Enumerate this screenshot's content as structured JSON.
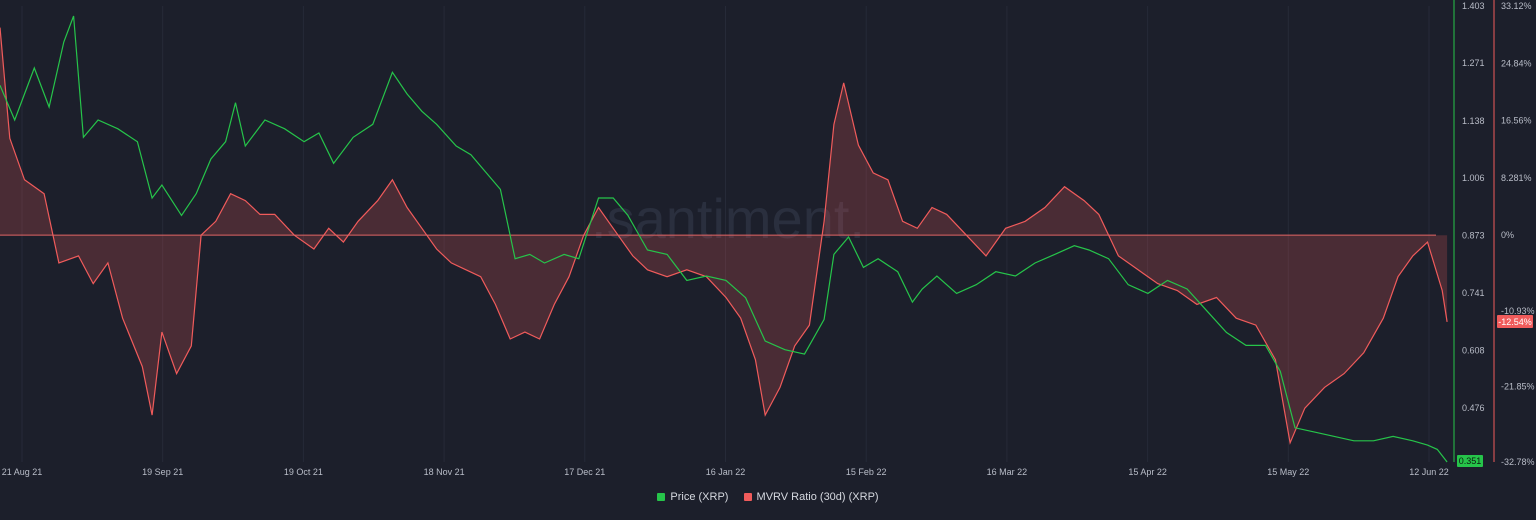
{
  "colors": {
    "background": "#1c1f2b",
    "price": "#26c44a",
    "mvrv": "#f05b5b",
    "grid": "#262a38",
    "zero_line": "#e26565"
  },
  "chart_data": {
    "type": "line",
    "watermark": ".santiment.",
    "x_ticks": [
      "21 Aug 21",
      "19 Sep 21",
      "19 Oct 21",
      "18 Nov 21",
      "17 Dec 21",
      "16 Jan 22",
      "15 Feb 22",
      "16 Mar 22",
      "15 Apr 22",
      "15 May 22",
      "12 Jun 22"
    ],
    "x_range": [
      "2021-08-21",
      "2022-06-13"
    ],
    "price_axis": {
      "ticks": [
        "1.403",
        "1.271",
        "1.138",
        "1.006",
        "0.873",
        "0.741",
        "0.608",
        "0.476"
      ],
      "range": [
        0.351,
        1.403
      ],
      "current_label": "0.351"
    },
    "mvrv_axis": {
      "ticks": [
        "33.12%",
        "24.84%",
        "16.56%",
        "8.281%",
        "0%",
        "-10.93%",
        "-21.85%",
        "-32.78%"
      ],
      "range": [
        -32.78,
        33.12
      ],
      "current_label": "-12.54%"
    },
    "series": [
      {
        "name": "Price (XRP)",
        "axis": "left",
        "color": "#26c44a",
        "points": [
          [
            "2021-08-21",
            1.22
          ],
          [
            "2021-08-24",
            1.14
          ],
          [
            "2021-08-28",
            1.26
          ],
          [
            "2021-08-31",
            1.17
          ],
          [
            "2021-09-03",
            1.32
          ],
          [
            "2021-09-05",
            1.38
          ],
          [
            "2021-09-07",
            1.1
          ],
          [
            "2021-09-10",
            1.14
          ],
          [
            "2021-09-14",
            1.12
          ],
          [
            "2021-09-18",
            1.09
          ],
          [
            "2021-09-21",
            0.96
          ],
          [
            "2021-09-23",
            0.99
          ],
          [
            "2021-09-27",
            0.92
          ],
          [
            "2021-09-30",
            0.97
          ],
          [
            "2021-10-03",
            1.05
          ],
          [
            "2021-10-06",
            1.09
          ],
          [
            "2021-10-08",
            1.18
          ],
          [
            "2021-10-10",
            1.08
          ],
          [
            "2021-10-14",
            1.14
          ],
          [
            "2021-10-18",
            1.12
          ],
          [
            "2021-10-22",
            1.09
          ],
          [
            "2021-10-25",
            1.11
          ],
          [
            "2021-10-28",
            1.04
          ],
          [
            "2021-11-01",
            1.1
          ],
          [
            "2021-11-05",
            1.13
          ],
          [
            "2021-11-09",
            1.25
          ],
          [
            "2021-11-12",
            1.2
          ],
          [
            "2021-11-15",
            1.16
          ],
          [
            "2021-11-18",
            1.13
          ],
          [
            "2021-11-22",
            1.08
          ],
          [
            "2021-11-25",
            1.06
          ],
          [
            "2021-11-28",
            1.02
          ],
          [
            "2021-12-01",
            0.98
          ],
          [
            "2021-12-04",
            0.82
          ],
          [
            "2021-12-07",
            0.83
          ],
          [
            "2021-12-10",
            0.81
          ],
          [
            "2021-12-14",
            0.83
          ],
          [
            "2021-12-17",
            0.82
          ],
          [
            "2021-12-21",
            0.96
          ],
          [
            "2021-12-24",
            0.96
          ],
          [
            "2021-12-27",
            0.92
          ],
          [
            "2021-12-31",
            0.84
          ],
          [
            "2022-01-04",
            0.83
          ],
          [
            "2022-01-08",
            0.77
          ],
          [
            "2022-01-12",
            0.78
          ],
          [
            "2022-01-16",
            0.77
          ],
          [
            "2022-01-20",
            0.73
          ],
          [
            "2022-01-24",
            0.63
          ],
          [
            "2022-01-28",
            0.61
          ],
          [
            "2022-02-01",
            0.6
          ],
          [
            "2022-02-05",
            0.68
          ],
          [
            "2022-02-07",
            0.83
          ],
          [
            "2022-02-10",
            0.87
          ],
          [
            "2022-02-13",
            0.8
          ],
          [
            "2022-02-16",
            0.82
          ],
          [
            "2022-02-20",
            0.79
          ],
          [
            "2022-02-23",
            0.72
          ],
          [
            "2022-02-25",
            0.75
          ],
          [
            "2022-02-28",
            0.78
          ],
          [
            "2022-03-04",
            0.74
          ],
          [
            "2022-03-08",
            0.76
          ],
          [
            "2022-03-12",
            0.79
          ],
          [
            "2022-03-16",
            0.78
          ],
          [
            "2022-03-20",
            0.81
          ],
          [
            "2022-03-24",
            0.83
          ],
          [
            "2022-03-28",
            0.85
          ],
          [
            "2022-03-31",
            0.84
          ],
          [
            "2022-04-04",
            0.82
          ],
          [
            "2022-04-08",
            0.76
          ],
          [
            "2022-04-12",
            0.74
          ],
          [
            "2022-04-16",
            0.77
          ],
          [
            "2022-04-20",
            0.75
          ],
          [
            "2022-04-24",
            0.7
          ],
          [
            "2022-04-28",
            0.65
          ],
          [
            "2022-05-02",
            0.62
          ],
          [
            "2022-05-06",
            0.62
          ],
          [
            "2022-05-09",
            0.56
          ],
          [
            "2022-05-12",
            0.43
          ],
          [
            "2022-05-16",
            0.42
          ],
          [
            "2022-05-20",
            0.41
          ],
          [
            "2022-05-24",
            0.4
          ],
          [
            "2022-05-28",
            0.4
          ],
          [
            "2022-06-01",
            0.41
          ],
          [
            "2022-06-05",
            0.4
          ],
          [
            "2022-06-08",
            0.39
          ],
          [
            "2022-06-10",
            0.38
          ],
          [
            "2022-06-12",
            0.351
          ]
        ]
      },
      {
        "name": "MVRV Ratio (30d) (XRP)",
        "axis": "right",
        "color": "#f05b5b",
        "points": [
          [
            "2021-08-21",
            30
          ],
          [
            "2021-08-23",
            14
          ],
          [
            "2021-08-26",
            8
          ],
          [
            "2021-08-30",
            6
          ],
          [
            "2021-09-02",
            -4
          ],
          [
            "2021-09-06",
            -3
          ],
          [
            "2021-09-09",
            -7
          ],
          [
            "2021-09-12",
            -4
          ],
          [
            "2021-09-15",
            -12
          ],
          [
            "2021-09-19",
            -19
          ],
          [
            "2021-09-21",
            -26
          ],
          [
            "2021-09-23",
            -14
          ],
          [
            "2021-09-26",
            -20
          ],
          [
            "2021-09-29",
            -16
          ],
          [
            "2021-10-01",
            0
          ],
          [
            "2021-10-04",
            2
          ],
          [
            "2021-10-07",
            6
          ],
          [
            "2021-10-10",
            5
          ],
          [
            "2021-10-13",
            3
          ],
          [
            "2021-10-16",
            3
          ],
          [
            "2021-10-20",
            0
          ],
          [
            "2021-10-24",
            -2
          ],
          [
            "2021-10-27",
            1
          ],
          [
            "2021-10-30",
            -1
          ],
          [
            "2021-11-02",
            2
          ],
          [
            "2021-11-06",
            5
          ],
          [
            "2021-11-09",
            8
          ],
          [
            "2021-11-12",
            4
          ],
          [
            "2021-11-15",
            1
          ],
          [
            "2021-11-18",
            -2
          ],
          [
            "2021-11-21",
            -4
          ],
          [
            "2021-11-24",
            -5
          ],
          [
            "2021-11-27",
            -6
          ],
          [
            "2021-11-30",
            -10
          ],
          [
            "2021-12-03",
            -15
          ],
          [
            "2021-12-06",
            -14
          ],
          [
            "2021-12-09",
            -15
          ],
          [
            "2021-12-12",
            -10
          ],
          [
            "2021-12-15",
            -6
          ],
          [
            "2021-12-18",
            0
          ],
          [
            "2021-12-21",
            4
          ],
          [
            "2021-12-24",
            1
          ],
          [
            "2021-12-28",
            -3
          ],
          [
            "2021-12-31",
            -5
          ],
          [
            "2022-01-04",
            -6
          ],
          [
            "2022-01-08",
            -5
          ],
          [
            "2022-01-12",
            -6
          ],
          [
            "2022-01-16",
            -9
          ],
          [
            "2022-01-19",
            -12
          ],
          [
            "2022-01-22",
            -18
          ],
          [
            "2022-01-24",
            -26
          ],
          [
            "2022-01-27",
            -22
          ],
          [
            "2022-01-30",
            -16
          ],
          [
            "2022-02-02",
            -13
          ],
          [
            "2022-02-05",
            2
          ],
          [
            "2022-02-07",
            16
          ],
          [
            "2022-02-09",
            22
          ],
          [
            "2022-02-12",
            13
          ],
          [
            "2022-02-15",
            9
          ],
          [
            "2022-02-18",
            8
          ],
          [
            "2022-02-21",
            2
          ],
          [
            "2022-02-24",
            1
          ],
          [
            "2022-02-27",
            4
          ],
          [
            "2022-03-02",
            3
          ],
          [
            "2022-03-06",
            0
          ],
          [
            "2022-03-10",
            -3
          ],
          [
            "2022-03-14",
            1
          ],
          [
            "2022-03-18",
            2
          ],
          [
            "2022-03-22",
            4
          ],
          [
            "2022-03-26",
            7
          ],
          [
            "2022-03-30",
            5
          ],
          [
            "2022-04-02",
            3
          ],
          [
            "2022-04-06",
            -3
          ],
          [
            "2022-04-10",
            -5
          ],
          [
            "2022-04-14",
            -7
          ],
          [
            "2022-04-18",
            -8
          ],
          [
            "2022-04-22",
            -10
          ],
          [
            "2022-04-26",
            -9
          ],
          [
            "2022-04-30",
            -12
          ],
          [
            "2022-05-04",
            -13
          ],
          [
            "2022-05-08",
            -18
          ],
          [
            "2022-05-11",
            -30
          ],
          [
            "2022-05-14",
            -25
          ],
          [
            "2022-05-18",
            -22
          ],
          [
            "2022-05-22",
            -20
          ],
          [
            "2022-05-26",
            -17
          ],
          [
            "2022-05-30",
            -12
          ],
          [
            "2022-06-02",
            -6
          ],
          [
            "2022-06-05",
            -3
          ],
          [
            "2022-06-08",
            -1
          ],
          [
            "2022-06-11",
            -8
          ],
          [
            "2022-06-12",
            -12.54
          ]
        ]
      }
    ],
    "legend": [
      "Price (XRP)",
      "MVRV Ratio (30d) (XRP)"
    ],
    "legend_position": "bottom-center",
    "grid": true
  }
}
